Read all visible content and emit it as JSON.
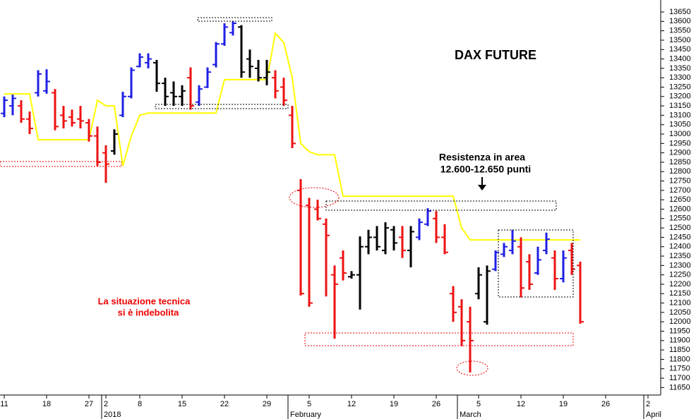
{
  "chart_data": {
    "type": "ohlc",
    "title": "DAX FUTURE",
    "annotations": {
      "resistance": [
        "Resistenza in area",
        "12.600-12.650 punti"
      ],
      "comment": [
        "La situazione tecnica",
        "si è indebolita"
      ]
    },
    "categories": [
      "11",
      null,
      null,
      null,
      null,
      "18",
      null,
      null,
      null,
      null,
      "27",
      null,
      "2",
      null,
      null,
      null,
      "8",
      null,
      null,
      null,
      null,
      "15",
      null,
      null,
      null,
      null,
      "22",
      null,
      null,
      null,
      null,
      "29",
      null,
      null,
      null,
      null,
      "5",
      null,
      null,
      null,
      null,
      "12",
      null,
      null,
      null,
      null,
      "19",
      null,
      null,
      null,
      null,
      "26",
      null,
      null,
      null,
      null,
      "5",
      null,
      null,
      null,
      null,
      "12",
      null,
      null,
      null,
      null,
      "19",
      null,
      null,
      null,
      null,
      "26",
      null,
      null,
      null,
      null,
      "2",
      null
    ],
    "periods": [
      null,
      null,
      null,
      null,
      null,
      null,
      null,
      null,
      null,
      null,
      null,
      null,
      "2018",
      null,
      null,
      null,
      null,
      null,
      null,
      null,
      null,
      null,
      null,
      null,
      null,
      null,
      null,
      null,
      null,
      null,
      null,
      null,
      null,
      null,
      "February",
      null,
      null,
      null,
      null,
      null,
      null,
      null,
      null,
      null,
      null,
      null,
      null,
      null,
      null,
      null,
      null,
      null,
      null,
      null,
      "March",
      null,
      null,
      null,
      null,
      null,
      null,
      null,
      null,
      null,
      null,
      null,
      null,
      null,
      null,
      null,
      null,
      null,
      null,
      null,
      null,
      null,
      "April",
      null
    ],
    "open": [
      13110,
      13150,
      13150,
      13080,
      13220,
      13230,
      13220,
      13100,
      13090,
      13080,
      13060,
      12990,
      12900,
      12910,
      13100,
      13200,
      13360,
      13380,
      13380,
      13270,
      13220,
      13200,
      13300,
      13170,
      13250,
      13370,
      13480,
      13540,
      13570,
      13400,
      13350,
      13300,
      13300,
      13250,
      13100,
      12700,
      12620,
      12600,
      12520,
      12250,
      12340,
      12240,
      12250,
      12400,
      12450,
      12380,
      12490,
      12450,
      12380,
      12450,
      12520,
      12550,
      12450,
      12150,
      12080,
      12000,
      12150,
      12000,
      12280,
      12360,
      12380,
      12400,
      12320,
      12260,
      12380,
      12340,
      12230,
      12380,
      12300,
      null,
      null,
      null,
      null,
      null,
      null,
      null,
      null,
      null
    ],
    "high": [
      13200,
      13210,
      13180,
      13120,
      13340,
      13345,
      13240,
      13150,
      13130,
      13150,
      13080,
      13040,
      12940,
      13025,
      13225,
      13355,
      13430,
      13430,
      13395,
      13300,
      13280,
      13260,
      13355,
      13260,
      13355,
      13490,
      13590,
      13600,
      13580,
      13450,
      13395,
      13395,
      13340,
      13300,
      13150,
      12760,
      12660,
      12650,
      12550,
      12300,
      12380,
      12270,
      12455,
      12490,
      12510,
      12530,
      12510,
      12510,
      12510,
      12550,
      12605,
      12590,
      12520,
      12190,
      12120,
      12080,
      12290,
      12300,
      12380,
      12420,
      12490,
      12450,
      12360,
      12400,
      12475,
      12380,
      12380,
      12420,
      12320,
      null,
      null,
      null,
      null,
      null,
      null,
      null,
      null,
      null
    ],
    "low": [
      13090,
      13100,
      13060,
      13000,
      13200,
      13215,
      13020,
      13030,
      13040,
      13030,
      12960,
      12830,
      12740,
      12890,
      13090,
      13190,
      13355,
      13350,
      13225,
      13150,
      13150,
      13150,
      13130,
      13150,
      13245,
      13355,
      13470,
      13525,
      13300,
      13300,
      13280,
      13260,
      13190,
      13150,
      12925,
      12140,
      12080,
      12540,
      12135,
      11910,
      12220,
      12230,
      12065,
      12360,
      12380,
      12360,
      12380,
      12340,
      12290,
      12435,
      12510,
      12420,
      12360,
      12000,
      11870,
      11730,
      12120,
      11985,
      12270,
      12345,
      12360,
      12130,
      12170,
      12250,
      12360,
      12170,
      12210,
      12250,
      11990,
      null,
      null,
      null,
      null,
      null,
      null,
      null,
      null,
      null
    ],
    "close": [
      13180,
      13190,
      13080,
      13030,
      13320,
      13280,
      13040,
      13070,
      13060,
      13070,
      12990,
      12850,
      12840,
      13000,
      13200,
      13340,
      13410,
      13400,
      13270,
      13200,
      13200,
      13230,
      13150,
      13240,
      13330,
      13480,
      13570,
      13590,
      13330,
      13360,
      13300,
      13330,
      13230,
      13180,
      12950,
      12150,
      12100,
      12550,
      12460,
      12200,
      12260,
      12250,
      12400,
      12450,
      12400,
      12500,
      12420,
      12380,
      12480,
      12530,
      12590,
      12450,
      12370,
      12050,
      11900,
      11900,
      12250,
      12270,
      12370,
      12400,
      12430,
      12180,
      12200,
      12330,
      12440,
      12230,
      12340,
      12280,
      12000,
      null,
      null,
      null,
      null,
      null,
      null,
      null,
      null,
      null
    ],
    "colors": [
      "#1f1fe6",
      "#1f1fe6",
      "#ee1111",
      "#ee1111",
      "#1f1fe6",
      "#1f1fe6",
      "#ee1111",
      "#ee1111",
      "#ee1111",
      "#ee1111",
      "#ee1111",
      "#ee1111",
      "#ee1111",
      "#000000",
      "#1f1fe6",
      "#1f1fe6",
      "#1f1fe6",
      "#1f1fe6",
      "#000000",
      "#000000",
      "#000000",
      "#000000",
      "#ee1111",
      "#1f1fe6",
      "#1f1fe6",
      "#1f1fe6",
      "#1f1fe6",
      "#1f1fe6",
      "#000000",
      "#000000",
      "#000000",
      "#000000",
      "#ee1111",
      "#ee1111",
      "#ee1111",
      "#ee1111",
      "#ee1111",
      "#ee1111",
      "#ee1111",
      "#ee1111",
      "#ee1111",
      "#000000",
      "#000000",
      "#000000",
      "#000000",
      "#000000",
      "#000000",
      "#ee1111",
      "#000000",
      "#1f1fe6",
      "#1f1fe6",
      "#ee1111",
      "#ee1111",
      "#ee1111",
      "#ee1111",
      "#ee1111",
      "#000000",
      "#000000",
      "#1f1fe6",
      "#1f1fe6",
      "#1f1fe6",
      "#ee1111",
      "#ee1111",
      "#1f1fe6",
      "#1f1fe6",
      "#ee1111",
      "#1f1fe6",
      "#ee1111",
      "#ee1111",
      null,
      null,
      null,
      null,
      null,
      null,
      null,
      null,
      null
    ],
    "line": {
      "color": "#ffff00",
      "values": [
        13214,
        13214,
        13214,
        13214,
        12970,
        12970,
        12970,
        12970,
        12970,
        12970,
        12970,
        13180,
        13150,
        13150,
        12830,
        12990,
        13100,
        13112,
        13112,
        13112,
        13112,
        13112,
        13112,
        13112,
        13112,
        13112,
        13290,
        13290,
        13290,
        13290,
        13290,
        13290,
        13537,
        13488,
        13300,
        12950,
        12906,
        12890,
        12890,
        12890,
        12669,
        12669,
        12669,
        12669,
        12669,
        12669,
        12669,
        12669,
        12669,
        12669,
        12669,
        12669,
        12669,
        12669,
        12500,
        12436,
        12436,
        12436,
        12436,
        12436,
        12436,
        12436,
        12436,
        12436,
        12436,
        12436,
        12436,
        12436,
        12436,
        null,
        null,
        null,
        null,
        null,
        null,
        null,
        null,
        null
      ]
    },
    "ylim": [
      11610,
      13714
    ],
    "yticks": [
      11650,
      11700,
      11750,
      11800,
      11850,
      11900,
      11950,
      12000,
      12050,
      12100,
      12150,
      12200,
      12250,
      12300,
      12350,
      12400,
      12450,
      12500,
      12550,
      12600,
      12650,
      12700,
      12750,
      12800,
      12850,
      12900,
      12950,
      13000,
      13050,
      13100,
      13150,
      13200,
      13250,
      13300,
      13350,
      13400,
      13450,
      13500,
      13550,
      13600,
      13650
    ]
  }
}
